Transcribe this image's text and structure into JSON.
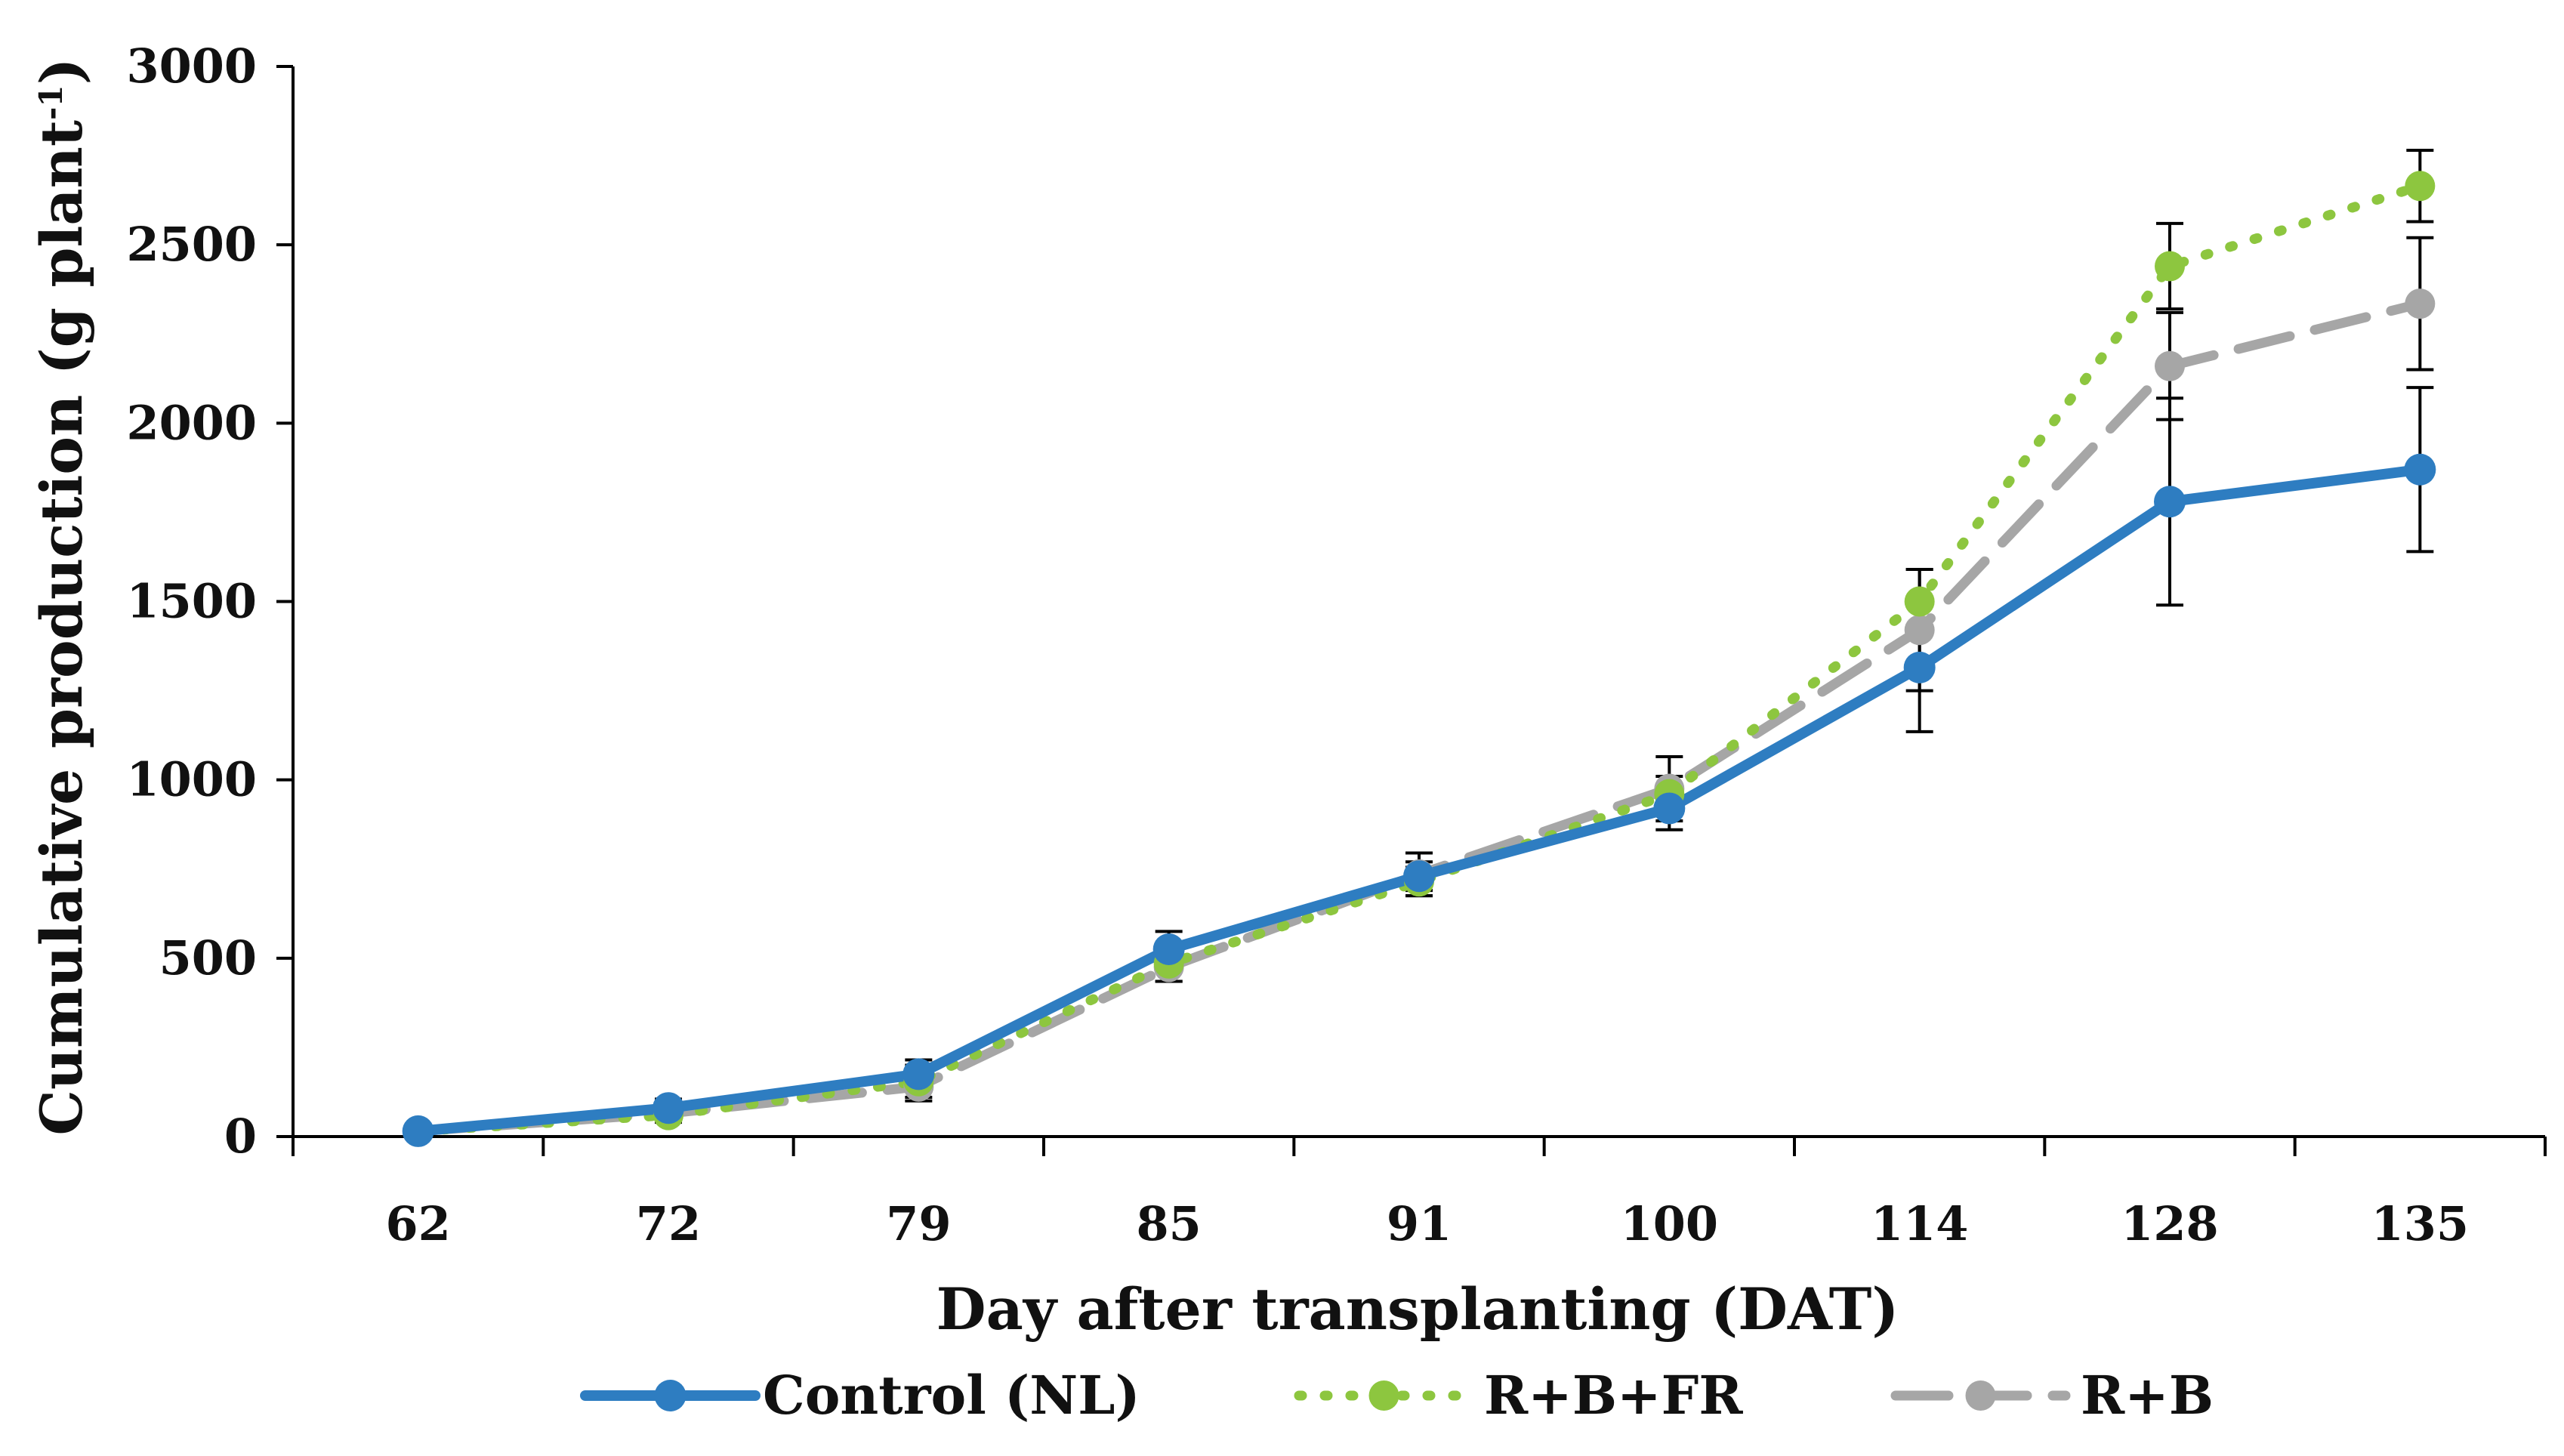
{
  "chart_data": {
    "type": "line",
    "title": "",
    "xlabel": "Day after transplanting (DAT)",
    "ylabel": "Cumulative production (g plant",
    "ylabel_superscript": "-1",
    "ylabel_suffix": ")",
    "categories": [
      "62",
      "72",
      "79",
      "85",
      "91",
      "100",
      "114",
      "128",
      "135"
    ],
    "ylim": [
      0,
      3000
    ],
    "yticks": [
      "0",
      "500",
      "1000",
      "1500",
      "2000",
      "2500",
      "3000"
    ],
    "legend_position": "bottom",
    "series": [
      {
        "name": "Control (NL)",
        "color": "#2E7DC1",
        "style": "solid",
        "values": [
          15,
          80,
          175,
          525,
          730,
          920,
          1315,
          1780,
          1870
        ],
        "errors": [
          10,
          25,
          40,
          50,
          40,
          60,
          180,
          290,
          230
        ]
      },
      {
        "name": "R+B+FR",
        "color": "#8DC63F",
        "style": "dotted",
        "values": [
          15,
          60,
          155,
          485,
          715,
          960,
          1500,
          2440,
          2665
        ],
        "errors": [
          8,
          20,
          45,
          50,
          40,
          50,
          90,
          120,
          100
        ]
      },
      {
        "name": "R+B",
        "color": "#A6A6A6",
        "style": "dashed",
        "values": [
          15,
          65,
          140,
          475,
          735,
          975,
          1420,
          2160,
          2335
        ],
        "errors": [
          8,
          20,
          40,
          40,
          60,
          90,
          170,
          150,
          185
        ]
      }
    ]
  }
}
